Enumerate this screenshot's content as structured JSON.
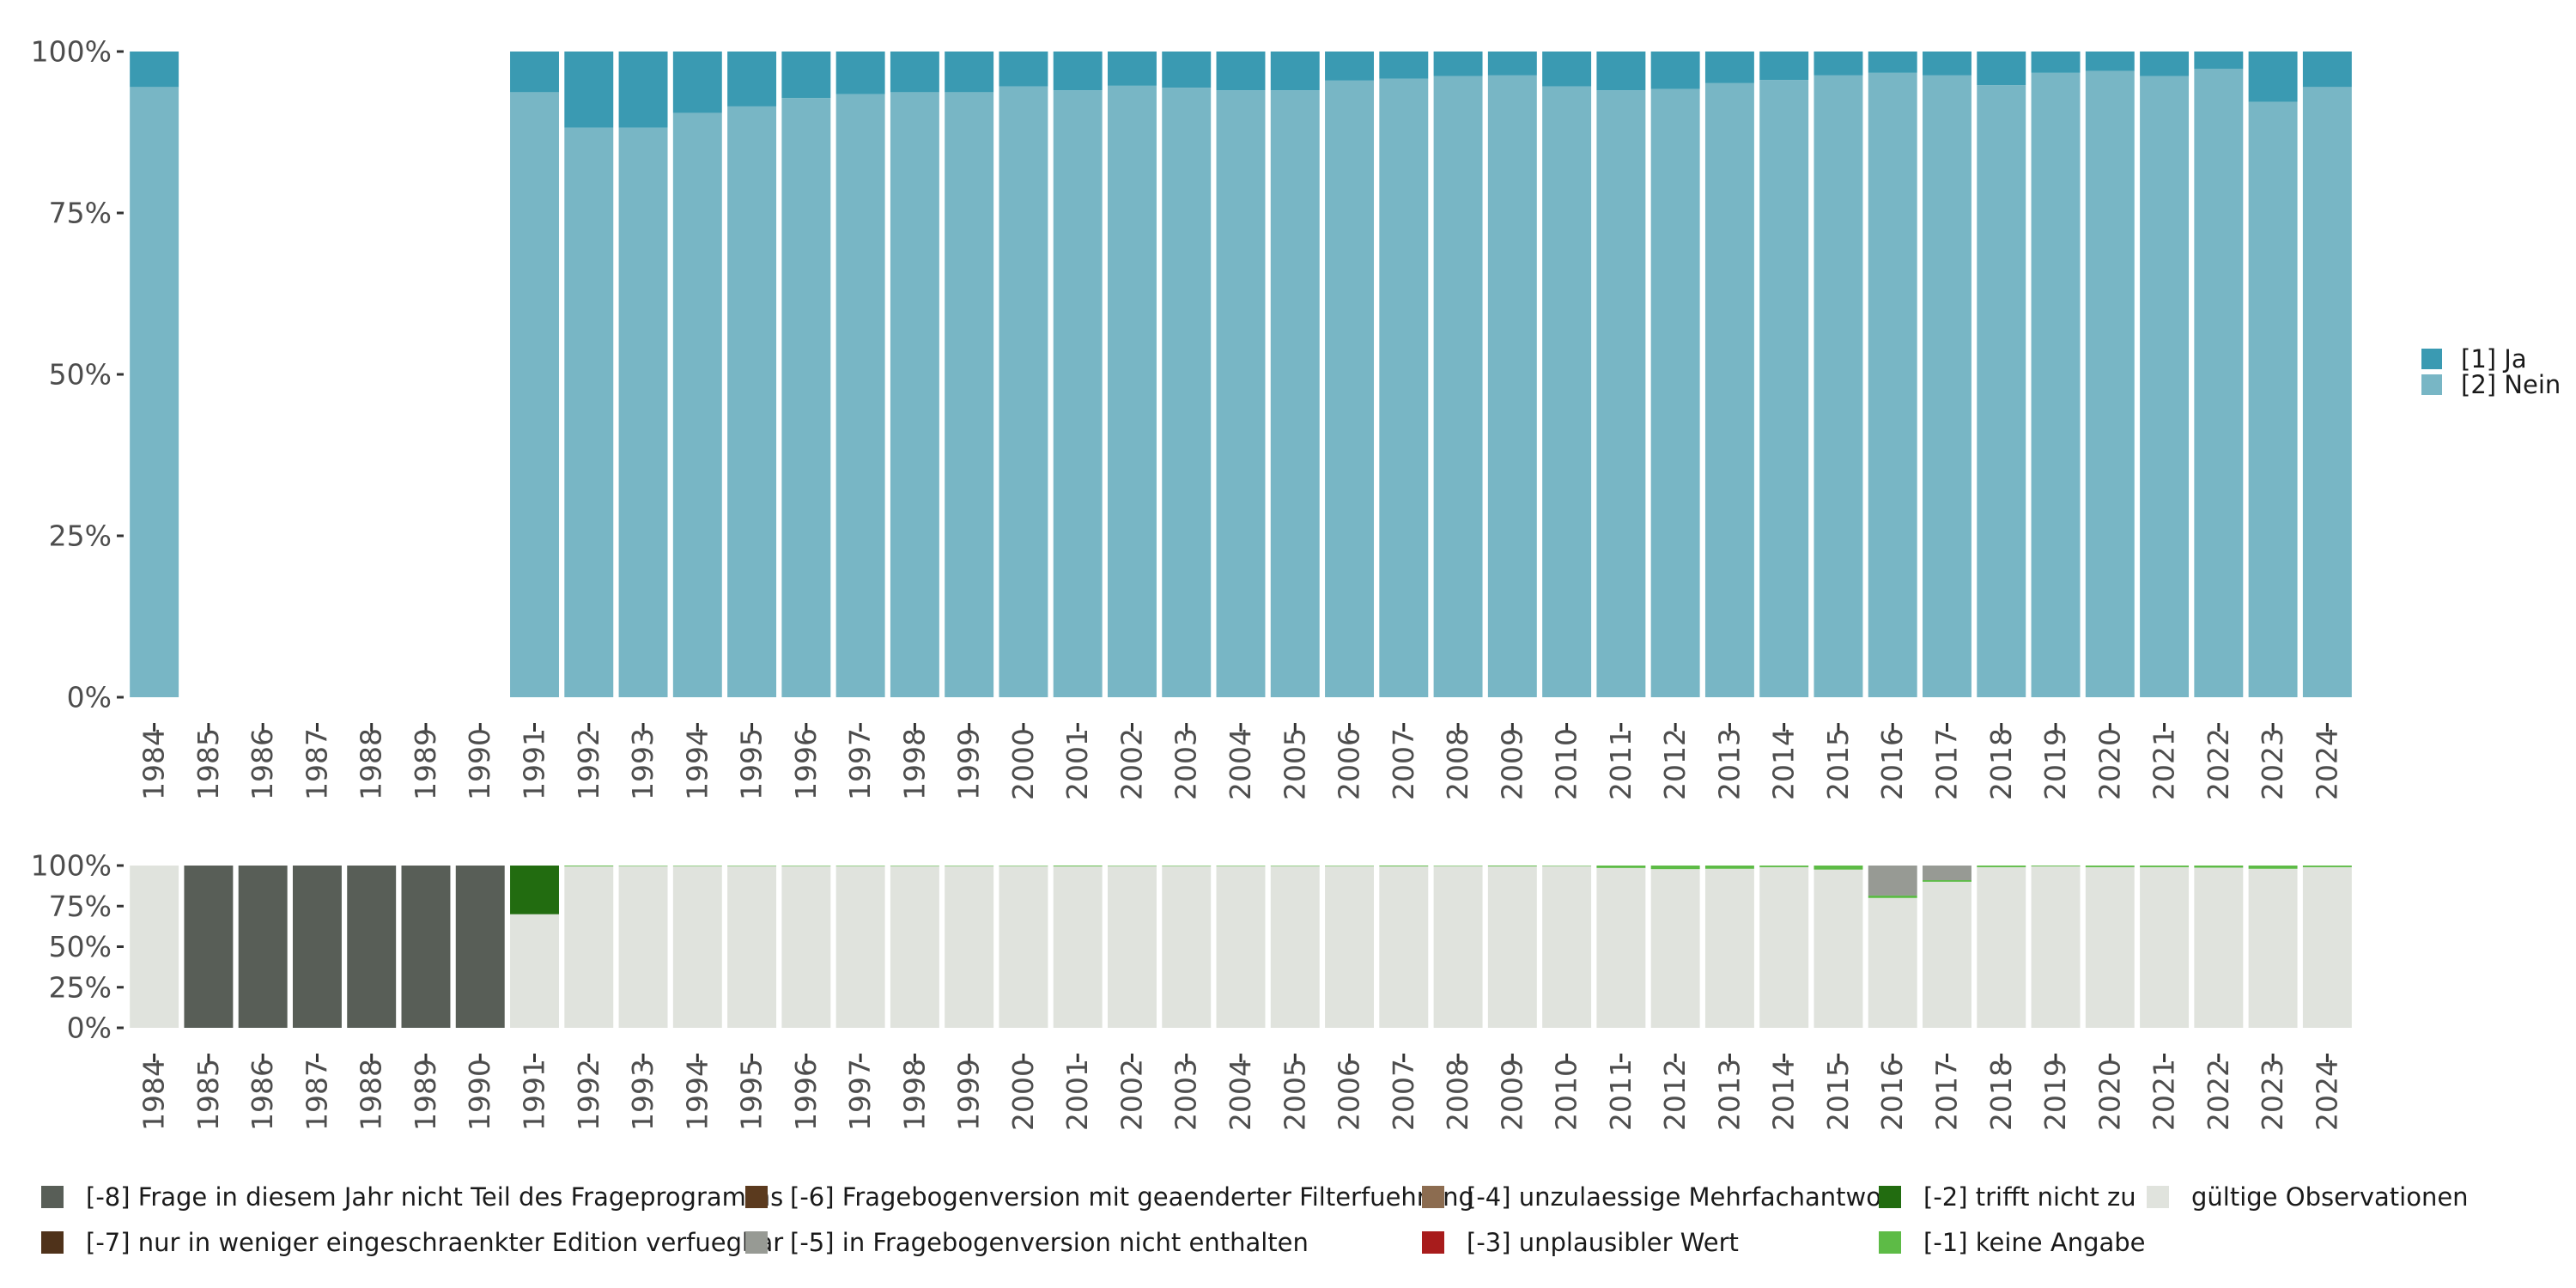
{
  "chart_data": [
    {
      "type": "bar",
      "stacked": true,
      "percent": true,
      "categories": [
        "1984",
        "1985",
        "1986",
        "1987",
        "1988",
        "1989",
        "1990",
        "1991",
        "1992",
        "1993",
        "1994",
        "1995",
        "1996",
        "1997",
        "1998",
        "1999",
        "2000",
        "2001",
        "2002",
        "2003",
        "2004",
        "2005",
        "2006",
        "2007",
        "2008",
        "2009",
        "2010",
        "2011",
        "2012",
        "2013",
        "2014",
        "2015",
        "2016",
        "2017",
        "2018",
        "2019",
        "2020",
        "2021",
        "2022",
        "2023",
        "2024"
      ],
      "ylim": [
        0,
        1
      ],
      "yticks": [
        "0%",
        "25%",
        "50%",
        "75%",
        "100%"
      ],
      "legend_position": "right",
      "series": [
        {
          "name": "[2] Nein",
          "color": "#78b6c5",
          "values": [
            0.945,
            null,
            null,
            null,
            null,
            null,
            null,
            0.937,
            0.882,
            0.882,
            0.905,
            0.915,
            0.928,
            0.934,
            0.937,
            0.937,
            0.946,
            0.94,
            0.947,
            0.944,
            0.94,
            0.94,
            0.955,
            0.958,
            0.962,
            0.963,
            0.946,
            0.94,
            0.942,
            0.951,
            0.956,
            0.963,
            0.967,
            0.963,
            0.948,
            0.967,
            0.97,
            0.962,
            0.973,
            0.922,
            0.945
          ]
        },
        {
          "name": "[1] Ja",
          "color": "#3a9ab2",
          "values": [
            0.055,
            null,
            null,
            null,
            null,
            null,
            null,
            0.063,
            0.118,
            0.118,
            0.095,
            0.085,
            0.072,
            0.066,
            0.063,
            0.063,
            0.054,
            0.06,
            0.053,
            0.056,
            0.06,
            0.06,
            0.045,
            0.042,
            0.038,
            0.037,
            0.054,
            0.06,
            0.058,
            0.049,
            0.044,
            0.037,
            0.033,
            0.037,
            0.052,
            0.033,
            0.03,
            0.038,
            0.027,
            0.078,
            0.055
          ]
        }
      ]
    },
    {
      "type": "bar",
      "stacked": true,
      "percent": true,
      "categories": [
        "1984",
        "1985",
        "1986",
        "1987",
        "1988",
        "1989",
        "1990",
        "1991",
        "1992",
        "1993",
        "1994",
        "1995",
        "1996",
        "1997",
        "1998",
        "1999",
        "2000",
        "2001",
        "2002",
        "2003",
        "2004",
        "2005",
        "2006",
        "2007",
        "2008",
        "2009",
        "2010",
        "2011",
        "2012",
        "2013",
        "2014",
        "2015",
        "2016",
        "2017",
        "2018",
        "2019",
        "2020",
        "2021",
        "2022",
        "2023",
        "2024"
      ],
      "ylim": [
        0,
        1
      ],
      "yticks": [
        "0%",
        "25%",
        "50%",
        "75%",
        "100%"
      ],
      "legend_position": "bottom",
      "series": [
        {
          "name": "gültige Observationen",
          "color": "#e0e3dd",
          "values": [
            1,
            0,
            0,
            0,
            0,
            0,
            0,
            0.7,
            0.995,
            0.997,
            0.997,
            0.997,
            0.997,
            0.997,
            0.997,
            0.997,
            0.997,
            0.995,
            0.997,
            0.997,
            0.997,
            0.997,
            0.997,
            0.995,
            0.997,
            0.995,
            0.997,
            0.985,
            0.978,
            0.98,
            0.99,
            0.975,
            0.8,
            0.9,
            0.99,
            0.995,
            0.99,
            0.99,
            0.987,
            0.98,
            0.99
          ]
        },
        {
          "name": "[-1] keine Angabe",
          "color": "#5dbb46",
          "values": [
            0,
            0,
            0,
            0,
            0,
            0,
            0,
            0,
            0.005,
            0.003,
            0.003,
            0.003,
            0.003,
            0.003,
            0.003,
            0.003,
            0.003,
            0.005,
            0.003,
            0.003,
            0.003,
            0.003,
            0.003,
            0.005,
            0.003,
            0.005,
            0.003,
            0.015,
            0.022,
            0.02,
            0.01,
            0.025,
            0.015,
            0.01,
            0.01,
            0.005,
            0.01,
            0.01,
            0.013,
            0.02,
            0.01
          ]
        },
        {
          "name": "[-2] trifft nicht zu",
          "color": "#226c10",
          "values": [
            0,
            0,
            0,
            0,
            0,
            0,
            0,
            0.3,
            0,
            0,
            0,
            0,
            0,
            0,
            0,
            0,
            0,
            0,
            0,
            0,
            0,
            0,
            0,
            0,
            0,
            0,
            0,
            0,
            0,
            0,
            0,
            0,
            0,
            0,
            0,
            0,
            0,
            0,
            0,
            0,
            0
          ]
        },
        {
          "name": "[-3] unplausibler Wert",
          "color": "#a81c1c",
          "values": [
            0,
            0,
            0,
            0,
            0,
            0,
            0,
            0,
            0,
            0,
            0,
            0,
            0,
            0,
            0,
            0,
            0,
            0,
            0,
            0,
            0,
            0,
            0,
            0,
            0,
            0,
            0,
            0,
            0,
            0,
            0,
            0,
            0,
            0,
            0,
            0,
            0,
            0,
            0,
            0,
            0
          ]
        },
        {
          "name": "[-4] unzulaessige Mehrfachantwort",
          "color": "#8c6c50",
          "values": [
            0,
            0,
            0,
            0,
            0,
            0,
            0,
            0,
            0,
            0,
            0,
            0,
            0,
            0,
            0,
            0,
            0,
            0,
            0,
            0,
            0,
            0,
            0,
            0,
            0,
            0,
            0,
            0,
            0,
            0,
            0,
            0,
            0,
            0,
            0,
            0,
            0,
            0,
            0,
            0,
            0
          ]
        },
        {
          "name": "[-5] in Fragebogenversion nicht enthalten",
          "color": "#979a94",
          "values": [
            0,
            0,
            0,
            0,
            0,
            0,
            0,
            0,
            0,
            0,
            0,
            0,
            0,
            0,
            0,
            0,
            0,
            0,
            0,
            0,
            0,
            0,
            0,
            0,
            0,
            0,
            0,
            0,
            0,
            0,
            0,
            0,
            0.185,
            0.09,
            0,
            0,
            0,
            0,
            0,
            0,
            0
          ]
        },
        {
          "name": "[-6] Fragebogenversion mit geaenderter Filterfuehrung",
          "color": "#5b3a1e",
          "values": [
            0,
            0,
            0,
            0,
            0,
            0,
            0,
            0,
            0,
            0,
            0,
            0,
            0,
            0,
            0,
            0,
            0,
            0,
            0,
            0,
            0,
            0,
            0,
            0,
            0,
            0,
            0,
            0,
            0,
            0,
            0,
            0,
            0,
            0,
            0,
            0,
            0,
            0,
            0,
            0,
            0
          ]
        },
        {
          "name": "[-7] nur in weniger eingeschraenkter Edition verfuegbar",
          "color": "#4f321a",
          "values": [
            0,
            0,
            0,
            0,
            0,
            0,
            0,
            0,
            0,
            0,
            0,
            0,
            0,
            0,
            0,
            0,
            0,
            0,
            0,
            0,
            0,
            0,
            0,
            0,
            0,
            0,
            0,
            0,
            0,
            0,
            0,
            0,
            0,
            0,
            0,
            0,
            0,
            0,
            0,
            0,
            0
          ]
        },
        {
          "name": "[-8] Frage in diesem Jahr nicht Teil des Frageprogramms",
          "color": "#585e57",
          "values": [
            0,
            1,
            1,
            1,
            1,
            1,
            1,
            0,
            0,
            0,
            0,
            0,
            0,
            0,
            0,
            0,
            0,
            0,
            0,
            0,
            0,
            0,
            0,
            0,
            0,
            0,
            0,
            0,
            0,
            0,
            0,
            0,
            0,
            0,
            0,
            0,
            0,
            0,
            0,
            0,
            0
          ]
        }
      ]
    }
  ],
  "legend_right": [
    {
      "label": "[1] Ja",
      "color": "#3a9ab2"
    },
    {
      "label": "[2] Nein",
      "color": "#78b6c5"
    }
  ],
  "legend_bottom": [
    {
      "label": "[-8] Frage in diesem Jahr nicht Teil des Frageprogramms",
      "color": "#585e57"
    },
    {
      "label": "[-7] nur in weniger eingeschraenkter Edition verfuegbar",
      "color": "#4f321a"
    },
    {
      "label": "[-6] Fragebogenversion mit geaenderter Filterfuehrung",
      "color": "#5b3a1e"
    },
    {
      "label": "[-5] in Fragebogenversion nicht enthalten",
      "color": "#979a94"
    },
    {
      "label": "[-4] unzulaessige Mehrfachantwort",
      "color": "#8c6c50"
    },
    {
      "label": "[-3] unplausibler Wert",
      "color": "#a81c1c"
    },
    {
      "label": "[-2] trifft nicht zu",
      "color": "#226c10"
    },
    {
      "label": "[-1] keine Angabe",
      "color": "#5dbb46"
    },
    {
      "label": "gültige Observationen",
      "color": "#e0e3dd"
    }
  ]
}
